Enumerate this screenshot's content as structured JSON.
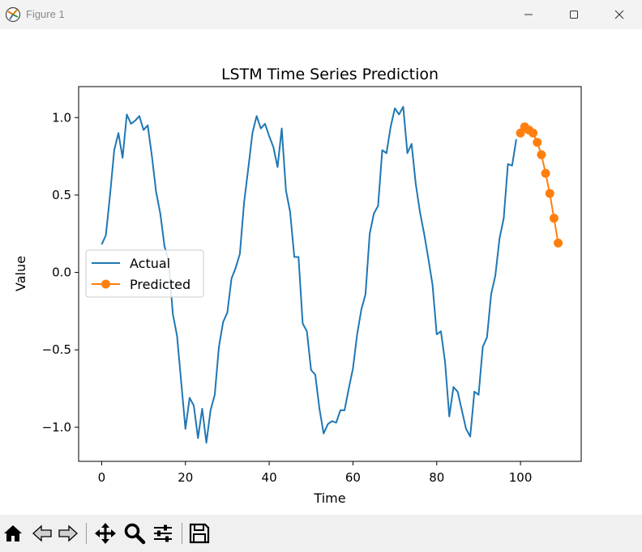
{
  "window": {
    "title": "Figure 1",
    "icons": [
      "app-icon",
      "minimize-icon",
      "maximize-icon",
      "close-icon"
    ]
  },
  "toolbar": {
    "tools": [
      "home-icon",
      "back-icon",
      "forward-icon",
      "pan-icon",
      "zoom-icon",
      "configure-icon",
      "save-icon"
    ]
  },
  "chart_data": {
    "type": "line",
    "title": "LSTM Time Series Prediction",
    "xlabel": "Time",
    "ylabel": "Value",
    "xlim": [
      -5.5,
      114.5
    ],
    "ylim": [
      -1.22,
      1.2
    ],
    "xticks": [
      0,
      20,
      40,
      60,
      80,
      100
    ],
    "yticks": [
      -1.0,
      -0.5,
      0.0,
      0.5,
      1.0
    ],
    "xtick_labels": [
      "0",
      "20",
      "40",
      "60",
      "80",
      "100"
    ],
    "ytick_labels": [
      "−1.0",
      "−0.5",
      "0.0",
      "0.5",
      "1.0"
    ],
    "grid": false,
    "legend": "center-left",
    "series": [
      {
        "name": "Actual",
        "color": "#1f77b4",
        "marker": "none",
        "x": [
          0,
          1,
          2,
          3,
          4,
          5,
          6,
          7,
          8,
          9,
          10,
          11,
          12,
          13,
          14,
          15,
          16,
          17,
          18,
          19,
          20,
          21,
          22,
          23,
          24,
          25,
          26,
          27,
          28,
          29,
          30,
          31,
          32,
          33,
          34,
          35,
          36,
          37,
          38,
          39,
          40,
          41,
          42,
          43,
          44,
          45,
          46,
          47,
          48,
          49,
          50,
          51,
          52,
          53,
          54,
          55,
          56,
          57,
          58,
          59,
          60,
          61,
          62,
          63,
          64,
          65,
          66,
          67,
          68,
          69,
          70,
          71,
          72,
          73,
          74,
          75,
          76,
          77,
          78,
          79,
          80,
          81,
          82,
          83,
          84,
          85,
          86,
          87,
          88,
          89,
          90,
          91,
          92,
          93,
          94,
          95,
          96,
          97,
          98,
          99
        ],
        "values": [
          0.18,
          0.24,
          0.5,
          0.79,
          0.9,
          0.74,
          1.02,
          0.96,
          0.98,
          1.01,
          0.92,
          0.95,
          0.75,
          0.52,
          0.38,
          0.17,
          0.07,
          -0.27,
          -0.41,
          -0.71,
          -1.01,
          -0.81,
          -0.86,
          -1.07,
          -0.88,
          -1.1,
          -0.89,
          -0.79,
          -0.48,
          -0.32,
          -0.26,
          -0.04,
          0.03,
          0.12,
          0.45,
          0.67,
          0.9,
          1.01,
          0.93,
          0.96,
          0.88,
          0.81,
          0.68,
          0.93,
          0.53,
          0.39,
          0.1,
          0.1,
          -0.33,
          -0.38,
          -0.63,
          -0.66,
          -0.88,
          -1.04,
          -0.98,
          -0.96,
          -0.97,
          -0.89,
          -0.89,
          -0.75,
          -0.62,
          -0.4,
          -0.24,
          -0.14,
          0.25,
          0.38,
          0.43,
          0.79,
          0.77,
          0.94,
          1.06,
          1.02,
          1.07,
          0.77,
          0.83,
          0.57,
          0.39,
          0.25,
          0.09,
          -0.08,
          -0.4,
          -0.38,
          -0.58,
          -0.93,
          -0.74,
          -0.77,
          -0.89,
          -1.01,
          -1.06,
          -0.77,
          -0.79,
          -0.48,
          -0.42,
          -0.14,
          -0.02,
          0.22,
          0.35,
          0.7,
          0.69,
          0.86
        ]
      },
      {
        "name": "Predicted",
        "color": "#ff7f0e",
        "marker": "circle",
        "x": [
          100,
          101,
          102,
          103,
          104,
          105,
          106,
          107,
          108,
          109
        ],
        "values": [
          0.9,
          0.94,
          0.92,
          0.9,
          0.84,
          0.76,
          0.64,
          0.51,
          0.35,
          0.19
        ]
      }
    ]
  }
}
